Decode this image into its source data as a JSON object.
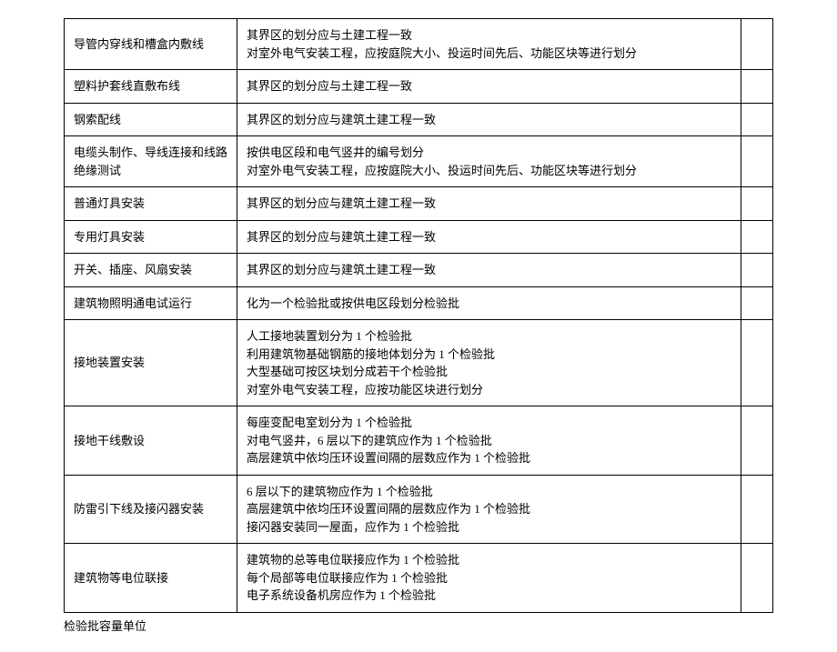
{
  "table": {
    "rows": [
      {
        "col1": "导管内穿线和槽盒内敷线",
        "col2_lines": [
          "其界区的划分应与土建工程一致",
          "对室外电气安装工程，应按庭院大小、投运时间先后、功能区块等进行划分"
        ],
        "col3": ""
      },
      {
        "col1": "塑料护套线直敷布线",
        "col2_lines": [
          "其界区的划分应与土建工程一致"
        ],
        "col3": ""
      },
      {
        "col1": "钢索配线",
        "col2_lines": [
          "其界区的划分应与建筑土建工程一致"
        ],
        "col3": ""
      },
      {
        "col1": "电缆头制作、导线连接和线路绝缘测试",
        "col2_lines": [
          "按供电区段和电气竖井的编号划分",
          "对室外电气安装工程，应按庭院大小、投运时间先后、功能区块等进行划分"
        ],
        "col3": ""
      },
      {
        "col1": "普通灯具安装",
        "col2_lines": [
          "其界区的划分应与建筑土建工程一致"
        ],
        "col3": ""
      },
      {
        "col1": "专用灯具安装",
        "col2_lines": [
          "其界区的划分应与建筑土建工程一致"
        ],
        "col3": ""
      },
      {
        "col1": "开关、插座、风扇安装",
        "col2_lines": [
          "其界区的划分应与建筑土建工程一致"
        ],
        "col3": ""
      },
      {
        "col1": "建筑物照明通电试运行",
        "col2_lines": [
          "化为一个检验批或按供电区段划分检验批"
        ],
        "col3": ""
      },
      {
        "col1": "接地装置安装",
        "col2_lines": [
          "人工接地装置划分为 1 个检验批",
          "利用建筑物基础钢筋的接地体划分为 1 个检验批",
          "大型基础可按区块划分成若干个检验批",
          "对室外电气安装工程，应按功能区块进行划分"
        ],
        "col3": ""
      },
      {
        "col1": "接地干线敷设",
        "col2_lines": [
          "每座变配电室划分为 1 个检验批",
          "对电气竖井，6 层以下的建筑应作为 1 个检验批",
          "高层建筑中依均压环设置间隔的层数应作为 1 个检验批"
        ],
        "col3": ""
      },
      {
        "col1": "防雷引下线及接闪器安装",
        "col2_lines": [
          "6 层以下的建筑物应作为 1 个检验批",
          "高层建筑中依均压环设置间隔的层数应作为 1 个检验批",
          "接闪器安装同一屋面，应作为 1 个检验批"
        ],
        "col3": ""
      },
      {
        "col1": "建筑物等电位联接",
        "col2_lines": [
          "建筑物的总等电位联接应作为 1 个检验批",
          "每个局部等电位联接应作为 1 个检验批",
          "电子系统设备机房应作为 1 个检验批"
        ],
        "col3": ""
      }
    ]
  },
  "caption": "检验批容量单位"
}
